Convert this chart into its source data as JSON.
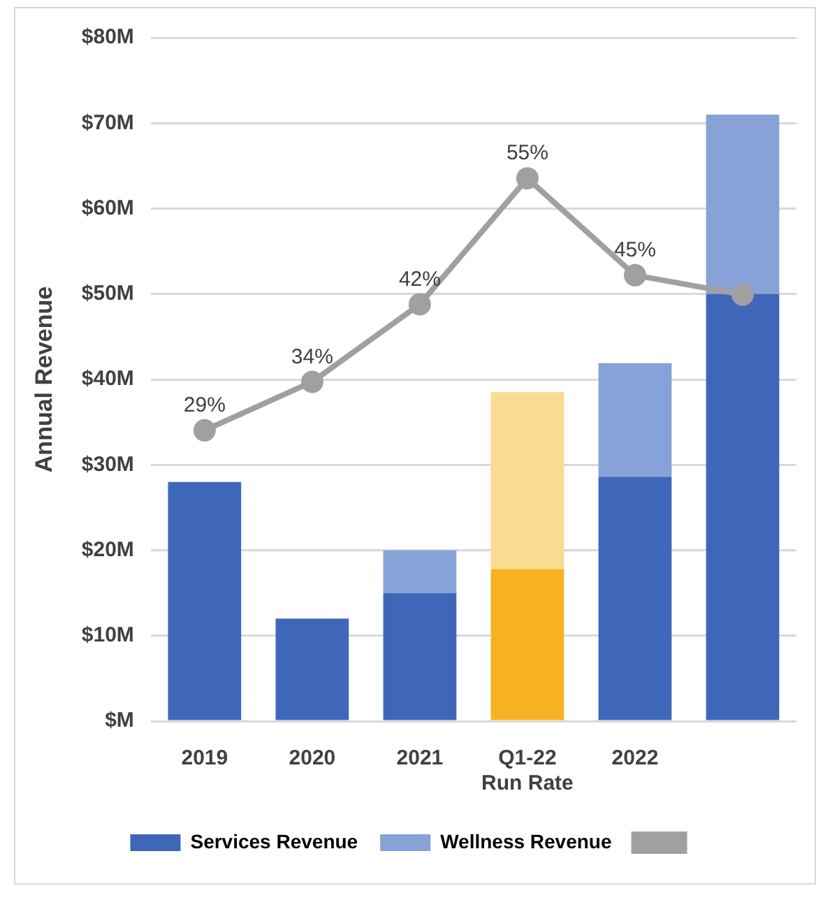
{
  "chart_data": {
    "type": "bar",
    "stacked": true,
    "ylabel": "Annual Revenue",
    "categories": [
      "2019",
      "2020",
      "2021",
      "Q1-22\nRun Rate",
      "2022",
      null
    ],
    "series": [
      {
        "name": "Services Revenue",
        "color": "#3f67b9",
        "colors": [
          "#3f67b9",
          "#3f67b9",
          "#3f67b9",
          "#f8b123",
          "#3f67b9",
          "#3f67b9"
        ],
        "values": [
          28,
          12,
          15,
          17.8,
          28.6,
          50
        ]
      },
      {
        "name": "Wellness Revenue",
        "color": "#86a2d6",
        "colors": [
          "#86a2d6",
          "#86a2d6",
          "#86a2d6",
          "#f9dc8f",
          "#86a2d6",
          "#86a2d6"
        ],
        "values": [
          null,
          null,
          5,
          20.7,
          13.3,
          21
        ]
      },
      {
        "type": "line",
        "axis": "y2",
        "color": "#a0a0a0",
        "marker": "circle",
        "values": [
          29,
          34,
          42,
          55,
          45,
          43
        ],
        "value_labels": [
          "29%",
          "34%",
          "42%",
          "55%",
          "45%",
          null
        ]
      }
    ],
    "ylim": [
      0,
      80
    ],
    "yticks": [
      {
        "value": 0,
        "label": "$M"
      },
      {
        "value": 10,
        "label": "$10M"
      },
      {
        "value": 20,
        "label": "$20M"
      },
      {
        "value": 30,
        "label": "$30M"
      },
      {
        "value": 40,
        "label": "$40M"
      },
      {
        "value": 50,
        "label": "$50M"
      },
      {
        "value": 60,
        "label": "$60M"
      },
      {
        "value": 70,
        "label": "$70M"
      },
      {
        "value": 80,
        "label": "$80M"
      }
    ],
    "y2lim": [
      -1,
      69.5
    ],
    "grid": "y",
    "legend": "bottom"
  }
}
